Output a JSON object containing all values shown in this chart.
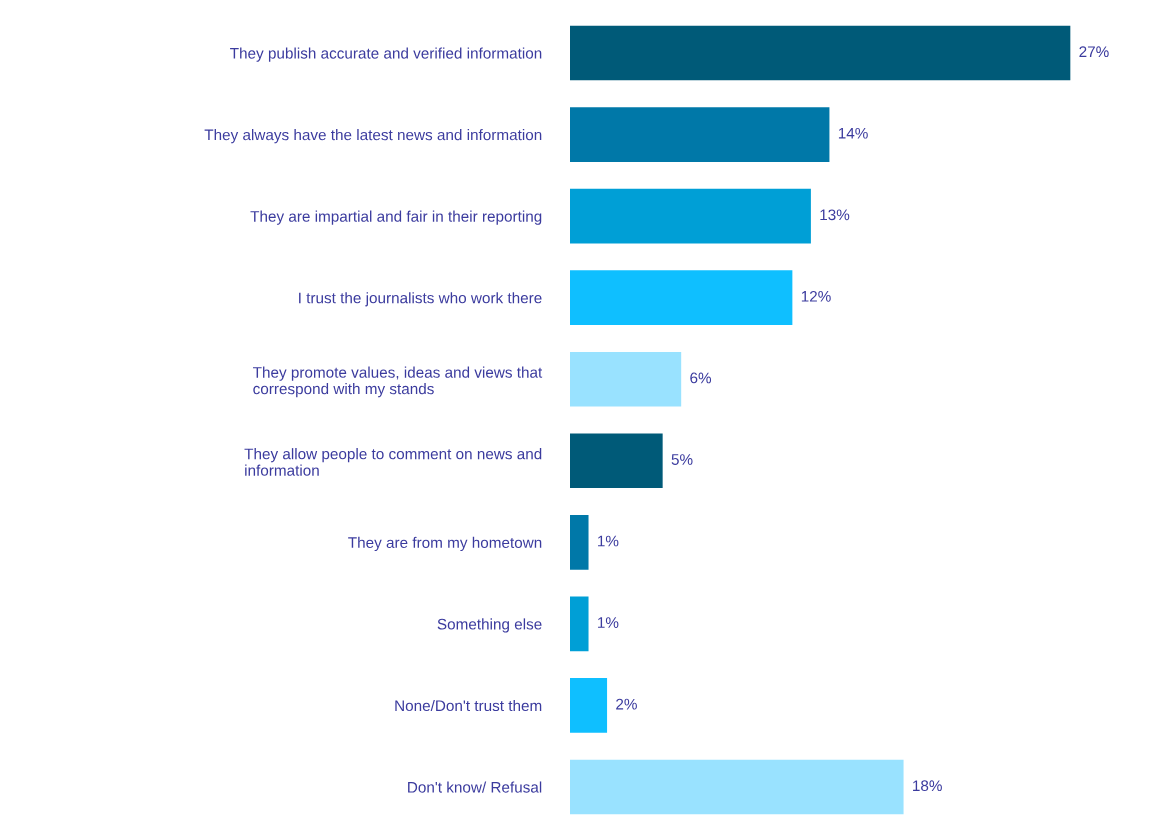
{
  "chart_data": {
    "type": "bar",
    "orientation": "horizontal",
    "categories": [
      "They publish accurate and verified information",
      "They always have the latest news and information",
      "They are impartial and fair in their reporting",
      "I trust the journalists who work there",
      "They promote values, ideas and views that\ncorrespond with my stands",
      "They allow people to comment on news and\ninformation",
      "They are from my hometown",
      "Something else",
      "None/Don't trust them",
      "Don't know/ Refusal"
    ],
    "values": [
      27,
      14,
      13,
      12,
      6,
      5,
      1,
      1,
      2,
      18
    ],
    "colors": [
      "#005a78",
      "#0078a8",
      "#009fd6",
      "#0fbfff",
      "#99e2ff",
      "#005a78",
      "#0078a8",
      "#009fd6",
      "#0fbfff",
      "#99e2ff"
    ],
    "value_labels": [
      "27%",
      "14%",
      "13%",
      "12%",
      "6%",
      "5%",
      "1%",
      "1%",
      "2%",
      "18%"
    ],
    "grid": false,
    "legend": false
  }
}
